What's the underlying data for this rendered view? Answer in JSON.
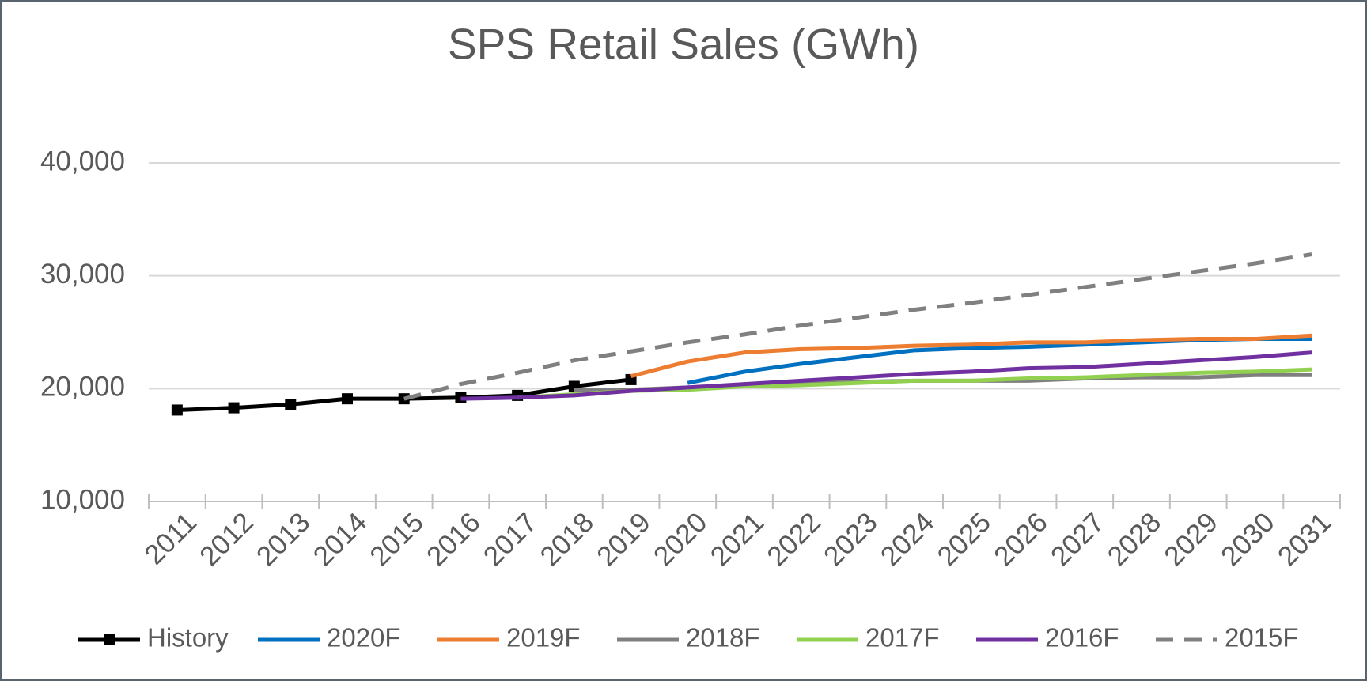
{
  "chart_data": {
    "type": "line",
    "title": "SPS Retail Sales (GWh)",
    "categories": [
      "2011",
      "2012",
      "2013",
      "2014",
      "2015",
      "2016",
      "2017",
      "2018",
      "2019",
      "2020",
      "2021",
      "2022",
      "2023",
      "2024",
      "2025",
      "2026",
      "2027",
      "2028",
      "2029",
      "2030",
      "2031"
    ],
    "ylim": [
      10000,
      40000
    ],
    "yticks": [
      {
        "value": 10000,
        "label": "10,000"
      },
      {
        "value": 20000,
        "label": "20,000"
      },
      {
        "value": 30000,
        "label": "30,000"
      },
      {
        "value": 40000,
        "label": "40,000"
      }
    ],
    "grid": true,
    "legend": "bottom",
    "series": [
      {
        "name": "History",
        "color": "#000000",
        "marker": "square",
        "values": [
          18100,
          18300,
          18600,
          19100,
          19100,
          19200,
          19400,
          20200,
          20800,
          null,
          null,
          null,
          null,
          null,
          null,
          null,
          null,
          null,
          null,
          null,
          null
        ]
      },
      {
        "name": "2020F",
        "color": "#0070c0",
        "values": [
          null,
          null,
          null,
          null,
          null,
          null,
          null,
          null,
          null,
          20500,
          21500,
          22200,
          22800,
          23400,
          23600,
          23700,
          23900,
          24100,
          24300,
          24400,
          24400
        ]
      },
      {
        "name": "2019F",
        "color": "#ed7d31",
        "values": [
          null,
          null,
          null,
          null,
          null,
          null,
          null,
          null,
          21100,
          22400,
          23200,
          23500,
          23600,
          23800,
          23900,
          24100,
          24100,
          24300,
          24400,
          24400,
          24700
        ]
      },
      {
        "name": "2018F",
        "color": "#7f7f7f",
        "values": [
          null,
          null,
          null,
          null,
          null,
          null,
          null,
          19900,
          19900,
          20100,
          20300,
          20500,
          20600,
          20700,
          20700,
          20700,
          20900,
          21000,
          21000,
          21200,
          21200
        ]
      },
      {
        "name": "2017F",
        "color": "#92d050",
        "values": [
          null,
          null,
          null,
          null,
          null,
          null,
          19200,
          19500,
          19800,
          19900,
          20200,
          20300,
          20500,
          20700,
          20700,
          20900,
          21000,
          21200,
          21400,
          21500,
          21700
        ]
      },
      {
        "name": "2016F",
        "color": "#7030a0",
        "values": [
          null,
          null,
          null,
          null,
          null,
          19100,
          19200,
          19400,
          19800,
          20100,
          20400,
          20700,
          21000,
          21300,
          21500,
          21800,
          21900,
          22200,
          22500,
          22800,
          23200
        ]
      },
      {
        "name": "2015F",
        "color": "#808080",
        "dash": true,
        "values": [
          null,
          null,
          null,
          null,
          19100,
          20400,
          21400,
          22500,
          23300,
          24100,
          24800,
          25600,
          26300,
          27000,
          27600,
          28300,
          29000,
          29700,
          30400,
          31100,
          31900
        ]
      }
    ]
  }
}
